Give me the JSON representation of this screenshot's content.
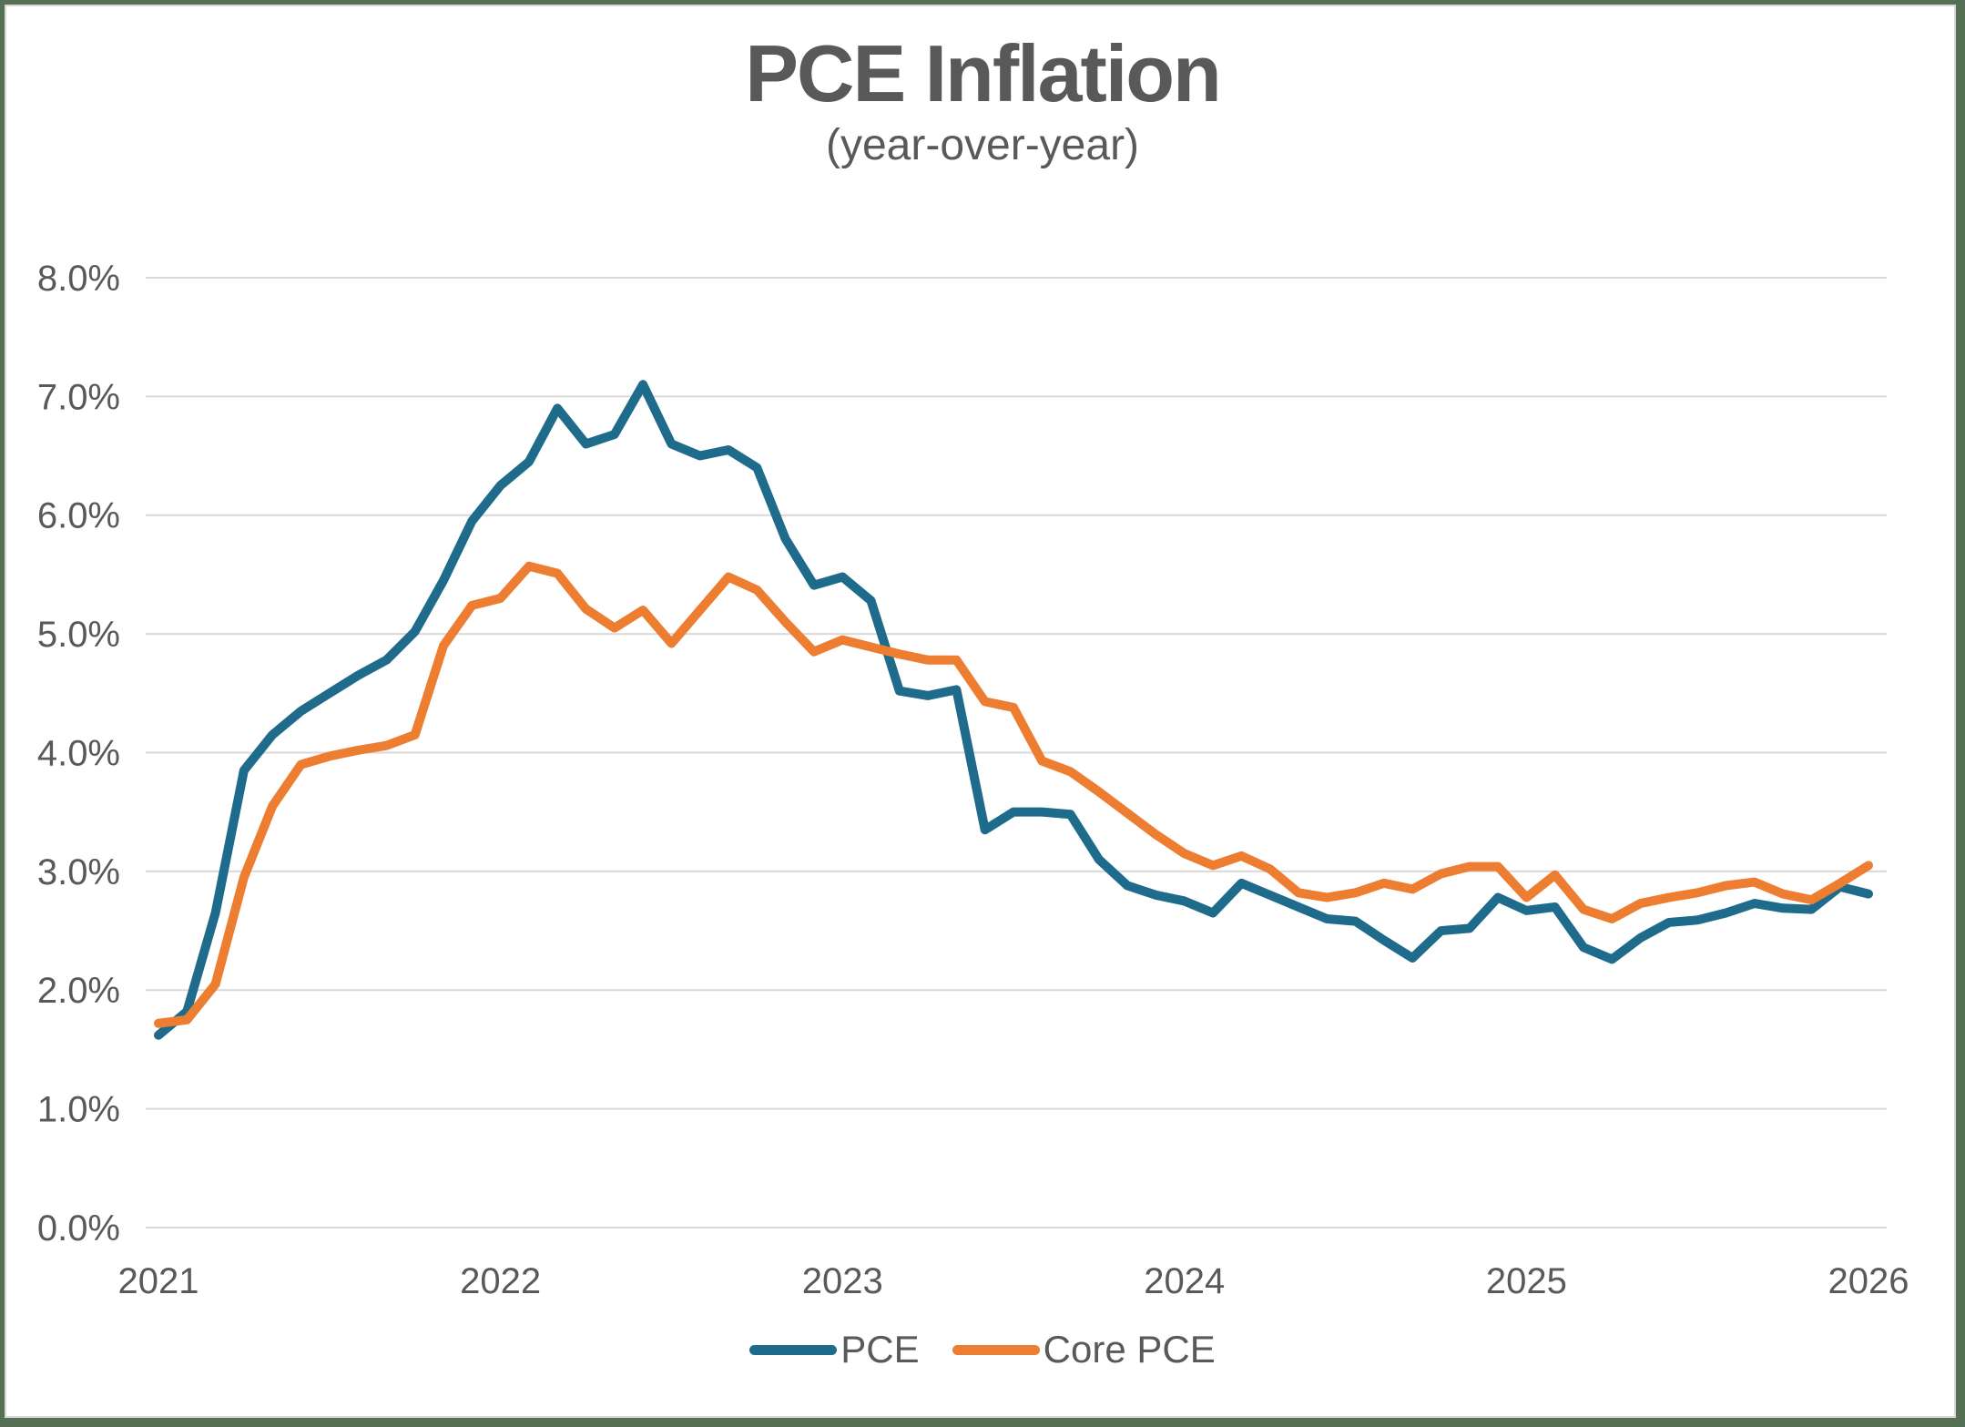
{
  "theme": {
    "frame_color": "#557055",
    "canvas_border_color": "#d9d9d9",
    "background_color": "#ffffff",
    "text_color": "#595959",
    "grid_color": "#d9d9d9",
    "pce_color": "#1E6B8C",
    "core_pce_color": "#ED7D31"
  },
  "chart_data": {
    "type": "line",
    "title": "PCE Inflation",
    "subtitle": "(year-over-year)",
    "grid": "horizontal-on",
    "legend_position": "bottom-center",
    "ylim": [
      0,
      8
    ],
    "y_tick_labels": [
      "0.0%",
      "1.0%",
      "2.0%",
      "3.0%",
      "4.0%",
      "5.0%",
      "6.0%",
      "7.0%",
      "8.0%"
    ],
    "x_tick_labels": [
      "2021",
      "2022",
      "2023",
      "2024",
      "2025",
      "2026"
    ],
    "x_tick_months": [
      0,
      12,
      24,
      36,
      48,
      60
    ],
    "x_start": "2021-01",
    "x_end": "2026-01",
    "x_frequency": "monthly",
    "series": [
      {
        "name": "PCE",
        "color": "#1E6B8C",
        "values": [
          1.62,
          1.82,
          2.65,
          3.85,
          4.15,
          4.35,
          4.5,
          4.65,
          4.78,
          5.02,
          5.45,
          5.95,
          6.25,
          6.45,
          6.9,
          6.6,
          6.68,
          7.1,
          6.6,
          6.5,
          6.55,
          6.4,
          5.8,
          5.41,
          5.48,
          5.28,
          4.52,
          4.48,
          4.53,
          3.35,
          3.5,
          3.5,
          3.48,
          3.1,
          2.88,
          2.8,
          2.75,
          2.65,
          2.9,
          2.8,
          2.7,
          2.6,
          2.58,
          2.42,
          2.27,
          2.5,
          2.52,
          2.78,
          2.67,
          2.7,
          2.36,
          2.26,
          2.44,
          2.57,
          2.59,
          2.65,
          2.73,
          2.69,
          2.68,
          2.87,
          2.81
        ]
      },
      {
        "name": "Core PCE",
        "color": "#ED7D31",
        "values": [
          1.72,
          1.75,
          2.05,
          2.95,
          3.55,
          3.9,
          3.97,
          4.02,
          4.06,
          4.15,
          4.9,
          5.24,
          5.3,
          5.57,
          5.51,
          5.21,
          5.05,
          5.2,
          4.92,
          5.2,
          5.48,
          5.37,
          5.1,
          4.85,
          4.95,
          4.89,
          4.83,
          4.78,
          4.78,
          4.43,
          4.38,
          3.93,
          3.84,
          3.67,
          3.49,
          3.31,
          3.15,
          3.05,
          3.13,
          3.02,
          2.82,
          2.78,
          2.82,
          2.9,
          2.85,
          2.98,
          3.04,
          3.04,
          2.78,
          2.97,
          2.68,
          2.6,
          2.73,
          2.78,
          2.82,
          2.88,
          2.91,
          2.81,
          2.76,
          2.9,
          3.05
        ]
      }
    ]
  }
}
